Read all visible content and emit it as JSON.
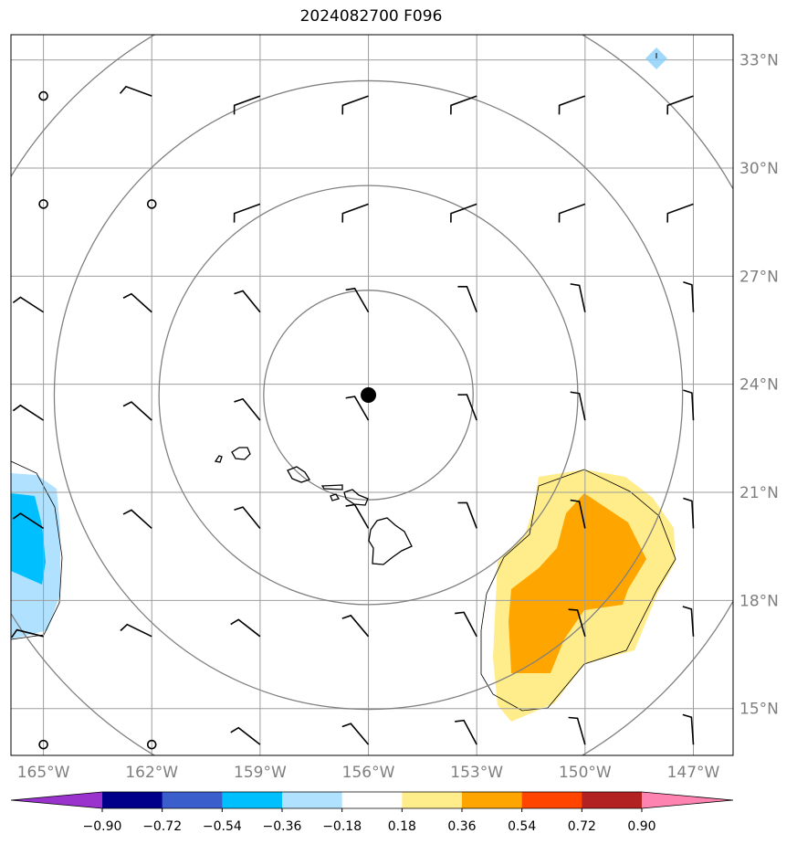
{
  "title": "2024082700 F096",
  "map": {
    "lat_labels": [
      "33°N",
      "30°N",
      "27°N",
      "24°N",
      "21°N",
      "18°N",
      "15°N"
    ],
    "lon_labels": [
      "165°W",
      "162°W",
      "159°W",
      "156°W",
      "153°W",
      "150°W",
      "147°W"
    ],
    "lat_values": [
      33,
      30,
      27,
      24,
      21,
      18,
      15
    ],
    "lon_values": [
      -165,
      -162,
      -159,
      -156,
      -153,
      -150,
      -147
    ],
    "extent": {
      "lon_min": -165.9,
      "lon_max": -145.9,
      "lat_min": 13.7,
      "lat_max": 33.7
    },
    "storm_center": {
      "lon": -156.0,
      "lat": 23.7
    },
    "range_rings_deg": [
      2.9,
      5.8,
      8.7,
      11.6
    ],
    "gridline_color": "#9e9e9e",
    "ring_color": "#808080"
  },
  "colorbar": {
    "labels": [
      "−0.90",
      "−0.72",
      "−0.54",
      "−0.36",
      "−0.18",
      "0.18",
      "0.36",
      "0.54",
      "0.72",
      "0.90"
    ],
    "colors": [
      "#9a32cd",
      "#00008b",
      "#3a5fcd",
      "#00bfff",
      "#b0e2ff",
      "#ffffff",
      "#ffec8b",
      "#ffa500",
      "#ff4500",
      "#b22222",
      "#ff83b0"
    ]
  }
}
